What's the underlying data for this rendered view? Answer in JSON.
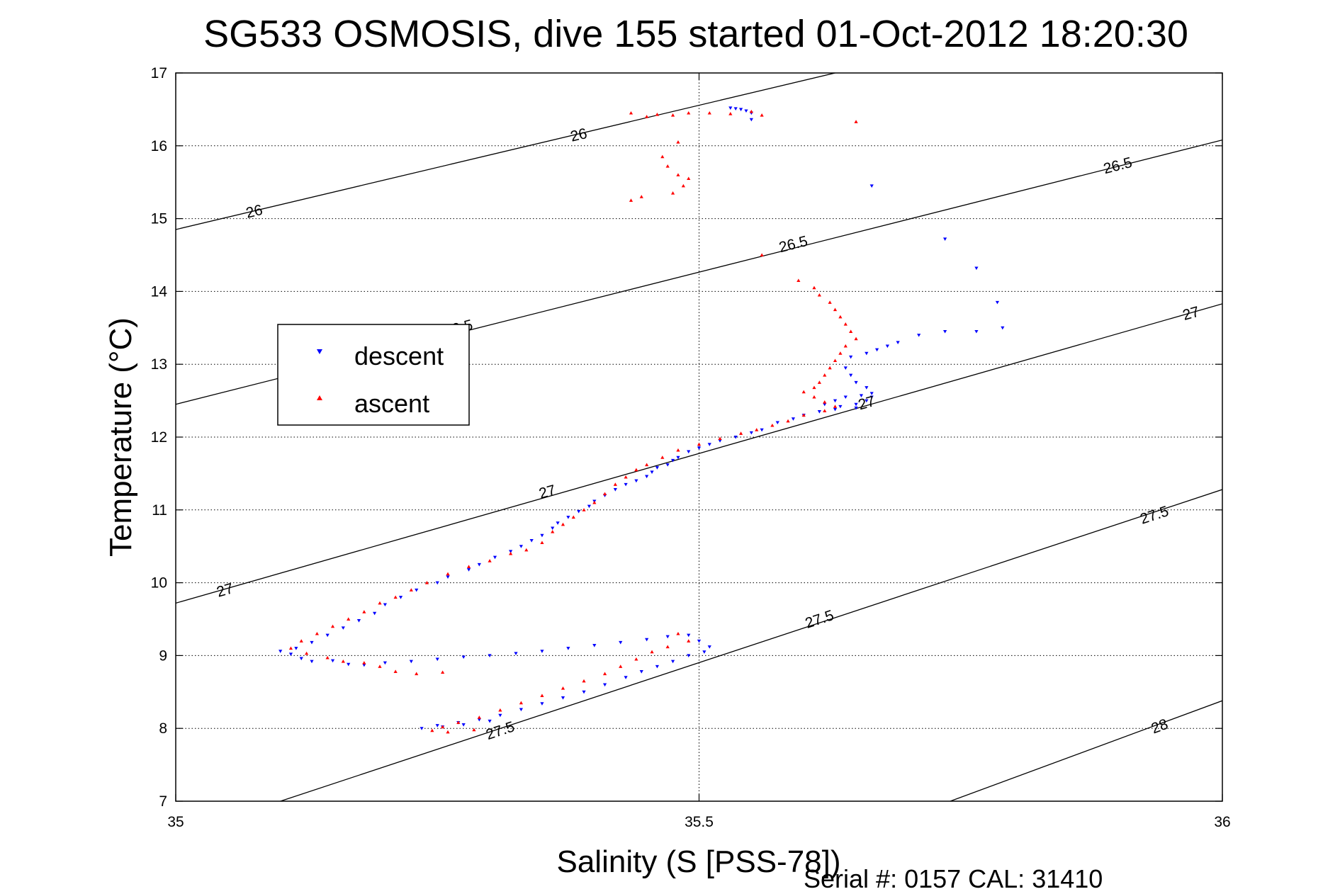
{
  "chart_data": {
    "type": "scatter",
    "title": "SG533 OSMOSIS, dive 155 started 01-Oct-2012 18:20:30",
    "xlabel": "Salinity (S [PSS-78])",
    "ylabel": "Temperature (°C)",
    "xlim": [
      35,
      36
    ],
    "ylim": [
      7,
      17
    ],
    "x_ticks": [
      35,
      35.5,
      36
    ],
    "x_tick_labels": [
      "35",
      "35.5",
      "36"
    ],
    "y_ticks": [
      7,
      8,
      9,
      10,
      11,
      12,
      13,
      14,
      15,
      16,
      17
    ],
    "y_tick_labels": [
      "7",
      "8",
      "9",
      "10",
      "11",
      "12",
      "13",
      "14",
      "15",
      "16",
      "17"
    ],
    "grid": true,
    "legend_position": "left",
    "footer": "Serial #: 0157  CAL: 31410",
    "density_contours": [
      {
        "level": 26,
        "points": [
          [
            35,
            14.85
          ],
          [
            35.63,
            17
          ]
        ],
        "labels": [
          {
            "text": "26",
            "x": 35.075,
            "y": 15.1
          },
          {
            "text": "26",
            "x": 35.385,
            "y": 16.15
          }
        ]
      },
      {
        "level": 26.5,
        "points": [
          [
            35,
            12.45
          ],
          [
            36,
            16.08
          ]
        ],
        "labels": [
          {
            "text": "26.5",
            "x": 35.27,
            "y": 13.5
          },
          {
            "text": "26.5",
            "x": 35.59,
            "y": 14.65
          },
          {
            "text": "26.5",
            "x": 35.9,
            "y": 15.73
          }
        ]
      },
      {
        "level": 27,
        "points": [
          [
            35,
            9.72
          ],
          [
            36,
            13.83
          ]
        ],
        "labels": [
          {
            "text": "27",
            "x": 35.047,
            "y": 9.9
          },
          {
            "text": "27",
            "x": 35.355,
            "y": 11.25
          },
          {
            "text": "27",
            "x": 35.66,
            "y": 12.47
          },
          {
            "text": "27",
            "x": 35.97,
            "y": 13.7
          }
        ]
      },
      {
        "level": 27.5,
        "points": [
          [
            35.1,
            7
          ],
          [
            36,
            11.28
          ]
        ],
        "labels": [
          {
            "text": "27.5",
            "x": 35.31,
            "y": 7.97
          },
          {
            "text": "27.5",
            "x": 35.615,
            "y": 9.5
          },
          {
            "text": "27.5",
            "x": 35.935,
            "y": 10.93
          }
        ]
      },
      {
        "level": 28,
        "points": [
          [
            35.74,
            7
          ],
          [
            36,
            8.38
          ]
        ],
        "labels": [
          {
            "text": "28",
            "x": 35.94,
            "y": 8.03
          }
        ]
      }
    ],
    "series": [
      {
        "name": "descent",
        "color": "#0000ff",
        "marker": "triangle-down",
        "points": [
          [
            35.53,
            16.52
          ],
          [
            35.535,
            16.51
          ],
          [
            35.54,
            16.5
          ],
          [
            35.545,
            16.48
          ],
          [
            35.55,
            16.45
          ],
          [
            35.55,
            16.36
          ],
          [
            35.665,
            15.45
          ],
          [
            35.735,
            14.72
          ],
          [
            35.765,
            14.32
          ],
          [
            35.785,
            13.85
          ],
          [
            35.79,
            13.5
          ],
          [
            35.765,
            13.45
          ],
          [
            35.735,
            13.45
          ],
          [
            35.71,
            13.4
          ],
          [
            35.69,
            13.3
          ],
          [
            35.68,
            13.25
          ],
          [
            35.67,
            13.2
          ],
          [
            35.66,
            13.15
          ],
          [
            35.645,
            13.1
          ],
          [
            35.64,
            12.95
          ],
          [
            35.645,
            12.85
          ],
          [
            35.65,
            12.75
          ],
          [
            35.66,
            12.68
          ],
          [
            35.665,
            12.6
          ],
          [
            35.655,
            12.57
          ],
          [
            35.64,
            12.55
          ],
          [
            35.63,
            12.5
          ],
          [
            35.62,
            12.45
          ],
          [
            35.635,
            12.42
          ],
          [
            35.65,
            12.45
          ],
          [
            35.66,
            12.5
          ],
          [
            35.665,
            12.55
          ],
          [
            35.65,
            12.4
          ],
          [
            35.63,
            12.38
          ],
          [
            35.615,
            12.35
          ],
          [
            35.6,
            12.3
          ],
          [
            35.59,
            12.25
          ],
          [
            35.575,
            12.2
          ],
          [
            35.56,
            12.1
          ],
          [
            35.55,
            12.06
          ],
          [
            35.535,
            12.0
          ],
          [
            35.52,
            11.95
          ],
          [
            35.51,
            11.9
          ],
          [
            35.5,
            11.85
          ],
          [
            35.49,
            11.8
          ],
          [
            35.48,
            11.72
          ],
          [
            35.475,
            11.68
          ],
          [
            35.47,
            11.62
          ],
          [
            35.46,
            11.58
          ],
          [
            35.455,
            11.52
          ],
          [
            35.45,
            11.46
          ],
          [
            35.44,
            11.4
          ],
          [
            35.43,
            11.35
          ],
          [
            35.42,
            11.28
          ],
          [
            35.41,
            11.2
          ],
          [
            35.4,
            11.12
          ],
          [
            35.395,
            11.05
          ],
          [
            35.385,
            10.98
          ],
          [
            35.375,
            10.9
          ],
          [
            35.365,
            10.82
          ],
          [
            35.36,
            10.75
          ],
          [
            35.35,
            10.65
          ],
          [
            35.34,
            10.58
          ],
          [
            35.33,
            10.5
          ],
          [
            35.32,
            10.43
          ],
          [
            35.305,
            10.35
          ],
          [
            35.29,
            10.25
          ],
          [
            35.28,
            10.18
          ],
          [
            35.26,
            10.08
          ],
          [
            35.25,
            10.0
          ],
          [
            35.23,
            9.9
          ],
          [
            35.215,
            9.8
          ],
          [
            35.2,
            9.7
          ],
          [
            35.19,
            9.58
          ],
          [
            35.175,
            9.48
          ],
          [
            35.16,
            9.38
          ],
          [
            35.145,
            9.28
          ],
          [
            35.13,
            9.18
          ],
          [
            35.115,
            9.1
          ],
          [
            35.1,
            9.06
          ],
          [
            35.11,
            9.02
          ],
          [
            35.12,
            8.96
          ],
          [
            35.13,
            8.92
          ],
          [
            35.15,
            8.93
          ],
          [
            35.165,
            8.88
          ],
          [
            35.18,
            8.87
          ],
          [
            35.2,
            8.9
          ],
          [
            35.225,
            8.92
          ],
          [
            35.25,
            8.95
          ],
          [
            35.275,
            8.98
          ],
          [
            35.3,
            9.0
          ],
          [
            35.325,
            9.03
          ],
          [
            35.35,
            9.06
          ],
          [
            35.375,
            9.1
          ],
          [
            35.4,
            9.14
          ],
          [
            35.425,
            9.18
          ],
          [
            35.45,
            9.22
          ],
          [
            35.47,
            9.26
          ],
          [
            35.49,
            9.28
          ],
          [
            35.5,
            9.2
          ],
          [
            35.51,
            9.12
          ],
          [
            35.505,
            9.05
          ],
          [
            35.49,
            9.0
          ],
          [
            35.475,
            8.92
          ],
          [
            35.46,
            8.85
          ],
          [
            35.445,
            8.78
          ],
          [
            35.43,
            8.7
          ],
          [
            35.41,
            8.6
          ],
          [
            35.39,
            8.5
          ],
          [
            35.37,
            8.42
          ],
          [
            35.35,
            8.34
          ],
          [
            35.33,
            8.26
          ],
          [
            35.31,
            8.18
          ],
          [
            35.29,
            8.12
          ],
          [
            35.27,
            8.08
          ],
          [
            35.25,
            8.04
          ],
          [
            35.235,
            8.0
          ],
          [
            35.255,
            8.02
          ],
          [
            35.275,
            8.05
          ],
          [
            35.3,
            8.1
          ]
        ]
      },
      {
        "name": "ascent",
        "color": "#ff0000",
        "marker": "triangle-up",
        "points": [
          [
            35.435,
            16.45
          ],
          [
            35.45,
            16.4
          ],
          [
            35.46,
            16.43
          ],
          [
            35.475,
            16.42
          ],
          [
            35.49,
            16.45
          ],
          [
            35.51,
            16.45
          ],
          [
            35.53,
            16.44
          ],
          [
            35.55,
            16.47
          ],
          [
            35.56,
            16.42
          ],
          [
            35.65,
            16.33
          ],
          [
            35.48,
            16.05
          ],
          [
            35.465,
            15.85
          ],
          [
            35.47,
            15.72
          ],
          [
            35.48,
            15.6
          ],
          [
            35.49,
            15.55
          ],
          [
            35.485,
            15.45
          ],
          [
            35.475,
            15.35
          ],
          [
            35.445,
            15.3
          ],
          [
            35.435,
            15.25
          ],
          [
            35.56,
            14.5
          ],
          [
            35.595,
            14.15
          ],
          [
            35.61,
            14.05
          ],
          [
            35.615,
            13.95
          ],
          [
            35.625,
            13.85
          ],
          [
            35.63,
            13.75
          ],
          [
            35.635,
            13.65
          ],
          [
            35.64,
            13.55
          ],
          [
            35.645,
            13.45
          ],
          [
            35.65,
            13.35
          ],
          [
            35.64,
            13.25
          ],
          [
            35.635,
            13.15
          ],
          [
            35.63,
            13.05
          ],
          [
            35.625,
            12.95
          ],
          [
            35.62,
            12.85
          ],
          [
            35.615,
            12.75
          ],
          [
            35.61,
            12.68
          ],
          [
            35.6,
            12.62
          ],
          [
            35.61,
            12.55
          ],
          [
            35.62,
            12.48
          ],
          [
            35.63,
            12.42
          ],
          [
            35.62,
            12.36
          ],
          [
            35.6,
            12.3
          ],
          [
            35.585,
            12.22
          ],
          [
            35.57,
            12.16
          ],
          [
            35.555,
            12.1
          ],
          [
            35.54,
            12.05
          ],
          [
            35.52,
            11.98
          ],
          [
            35.5,
            11.9
          ],
          [
            35.48,
            11.82
          ],
          [
            35.465,
            11.72
          ],
          [
            35.45,
            11.62
          ],
          [
            35.44,
            11.55
          ],
          [
            35.43,
            11.45
          ],
          [
            35.42,
            11.35
          ],
          [
            35.41,
            11.22
          ],
          [
            35.4,
            11.1
          ],
          [
            35.39,
            11.0
          ],
          [
            35.38,
            10.9
          ],
          [
            35.37,
            10.8
          ],
          [
            35.36,
            10.7
          ],
          [
            35.35,
            10.55
          ],
          [
            35.335,
            10.45
          ],
          [
            35.32,
            10.4
          ],
          [
            35.3,
            10.3
          ],
          [
            35.28,
            10.22
          ],
          [
            35.26,
            10.12
          ],
          [
            35.24,
            10.0
          ],
          [
            35.225,
            9.9
          ],
          [
            35.21,
            9.8
          ],
          [
            35.195,
            9.72
          ],
          [
            35.18,
            9.6
          ],
          [
            35.165,
            9.5
          ],
          [
            35.15,
            9.4
          ],
          [
            35.135,
            9.3
          ],
          [
            35.12,
            9.2
          ],
          [
            35.11,
            9.1
          ],
          [
            35.125,
            9.03
          ],
          [
            35.145,
            8.97
          ],
          [
            35.16,
            8.92
          ],
          [
            35.18,
            8.9
          ],
          [
            35.195,
            8.85
          ],
          [
            35.21,
            8.78
          ],
          [
            35.23,
            8.75
          ],
          [
            35.255,
            8.77
          ],
          [
            35.48,
            9.3
          ],
          [
            35.49,
            9.2
          ],
          [
            35.47,
            9.12
          ],
          [
            35.455,
            9.05
          ],
          [
            35.44,
            8.95
          ],
          [
            35.425,
            8.85
          ],
          [
            35.41,
            8.75
          ],
          [
            35.39,
            8.65
          ],
          [
            35.37,
            8.55
          ],
          [
            35.35,
            8.45
          ],
          [
            35.33,
            8.35
          ],
          [
            35.31,
            8.25
          ],
          [
            35.29,
            8.15
          ],
          [
            35.27,
            8.08
          ],
          [
            35.255,
            8.02
          ],
          [
            35.245,
            7.97
          ],
          [
            35.26,
            7.95
          ],
          [
            35.285,
            7.98
          ]
        ]
      }
    ]
  }
}
